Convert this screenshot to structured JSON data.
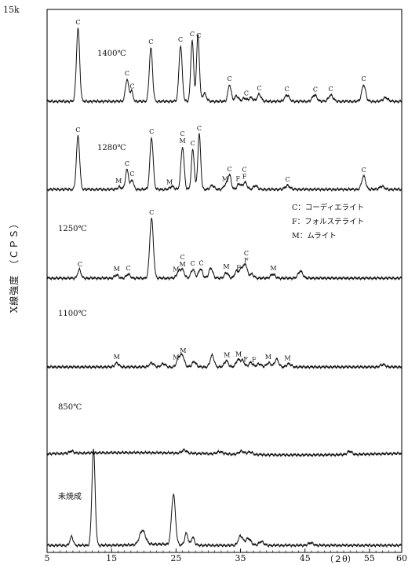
{
  "chart_data": {
    "type": "line",
    "title": "",
    "xlabel": "（２θ）",
    "ylabel": "X線強度　（ＣＰＳ）",
    "ytop_label": "15k",
    "xlim": [
      5,
      60
    ],
    "xticks": [
      {
        "value": 5,
        "label": "5"
      },
      {
        "value": 15,
        "label": "15"
      },
      {
        "value": 25,
        "label": "25"
      },
      {
        "value": 35,
        "label": "35"
      },
      {
        "value": 45,
        "label": "45"
      },
      {
        "value": 55,
        "label": "55"
      },
      {
        "value": 60,
        "label": "60"
      }
    ],
    "legend": {
      "position": "right, beside 1250℃ curve",
      "items": [
        {
          "key": "C",
          "text": "C：コーディエライト"
        },
        {
          "key": "F",
          "text": "F：フォルステライト"
        },
        {
          "key": "M",
          "text": "M：ムライト"
        }
      ]
    },
    "series": [
      {
        "name": "1400℃",
        "peaks": [
          {
            "x": 9.8,
            "h": 93,
            "w": 0.25
          },
          {
            "x": 17.4,
            "h": 28,
            "w": 0.25
          },
          {
            "x": 18.1,
            "h": 13,
            "w": 0.22
          },
          {
            "x": 21.1,
            "h": 68,
            "w": 0.25
          },
          {
            "x": 25.7,
            "h": 71,
            "w": 0.25
          },
          {
            "x": 27.5,
            "h": 78,
            "w": 0.22
          },
          {
            "x": 28.4,
            "h": 84,
            "w": 0.22
          },
          {
            "x": 29.4,
            "h": 10,
            "w": 0.3
          },
          {
            "x": 33.3,
            "h": 21,
            "w": 0.25
          },
          {
            "x": 34.4,
            "h": 7,
            "w": 0.3
          },
          {
            "x": 35.6,
            "h": 4,
            "w": 0.3
          },
          {
            "x": 36.6,
            "h": 5,
            "w": 0.3
          },
          {
            "x": 37.9,
            "h": 9,
            "w": 0.3
          },
          {
            "x": 42.2,
            "h": 8,
            "w": 0.35
          },
          {
            "x": 46.5,
            "h": 8,
            "w": 0.35
          },
          {
            "x": 49.0,
            "h": 8,
            "w": 0.35
          },
          {
            "x": 54.1,
            "h": 21,
            "w": 0.3
          },
          {
            "x": 57.5,
            "h": 5,
            "w": 0.35
          }
        ],
        "labels": [
          {
            "x": 9.8,
            "text": "C"
          },
          {
            "x": 17.4,
            "text": "C"
          },
          {
            "x": 18.2,
            "text": "C"
          },
          {
            "x": 21.1,
            "text": "C"
          },
          {
            "x": 25.7,
            "text": "C"
          },
          {
            "x": 27.5,
            "text": "C"
          },
          {
            "x": 28.5,
            "text": "C"
          },
          {
            "x": 33.3,
            "text": "C"
          },
          {
            "x": 35.9,
            "text": "C"
          },
          {
            "x": 37.9,
            "text": "C"
          },
          {
            "x": 42.2,
            "text": "C"
          },
          {
            "x": 46.6,
            "text": "C"
          },
          {
            "x": 49.0,
            "text": "C"
          },
          {
            "x": 54.1,
            "text": "C"
          }
        ]
      },
      {
        "name": "1280℃",
        "peaks": [
          {
            "x": 9.8,
            "h": 68,
            "w": 0.25
          },
          {
            "x": 16.2,
            "h": 3,
            "w": 0.3
          },
          {
            "x": 17.4,
            "h": 25,
            "w": 0.25
          },
          {
            "x": 18.2,
            "h": 12,
            "w": 0.22
          },
          {
            "x": 21.2,
            "h": 66,
            "w": 0.25
          },
          {
            "x": 24.4,
            "h": 4,
            "w": 0.3
          },
          {
            "x": 26.0,
            "h": 54,
            "w": 0.25
          },
          {
            "x": 27.6,
            "h": 51,
            "w": 0.22
          },
          {
            "x": 28.6,
            "h": 70,
            "w": 0.22
          },
          {
            "x": 30.6,
            "h": 5,
            "w": 0.3
          },
          {
            "x": 32.7,
            "h": 6,
            "w": 0.3
          },
          {
            "x": 33.3,
            "h": 18,
            "w": 0.25
          },
          {
            "x": 34.8,
            "h": 7,
            "w": 0.3
          },
          {
            "x": 35.7,
            "h": 9,
            "w": 0.3
          },
          {
            "x": 37.3,
            "h": 5,
            "w": 0.3
          },
          {
            "x": 42.3,
            "h": 5,
            "w": 0.35
          },
          {
            "x": 54.1,
            "h": 17,
            "w": 0.3
          },
          {
            "x": 56.9,
            "h": 4,
            "w": 0.35
          }
        ],
        "labels": [
          {
            "x": 9.8,
            "text": "C"
          },
          {
            "x": 16.1,
            "text": "M"
          },
          {
            "x": 17.4,
            "text": "C"
          },
          {
            "x": 18.2,
            "text": "C"
          },
          {
            "x": 21.2,
            "text": "C"
          },
          {
            "x": 24.0,
            "text": "M"
          },
          {
            "x": 26.0,
            "text": "M"
          },
          {
            "x": 26.0,
            "text": "C"
          },
          {
            "x": 27.6,
            "text": "C"
          },
          {
            "x": 28.6,
            "text": "C"
          },
          {
            "x": 32.6,
            "text": "M"
          },
          {
            "x": 33.3,
            "text": "C"
          },
          {
            "x": 34.6,
            "text": "F"
          },
          {
            "x": 35.6,
            "text": "F"
          },
          {
            "x": 35.6,
            "text": "C"
          },
          {
            "x": 42.3,
            "text": "C"
          },
          {
            "x": 54.1,
            "text": "C"
          }
        ]
      },
      {
        "name": "1250℃",
        "peaks": [
          {
            "x": 10.0,
            "h": 11,
            "w": 0.25
          },
          {
            "x": 15.8,
            "h": 4,
            "w": 0.3
          },
          {
            "x": 17.6,
            "h": 5,
            "w": 0.3
          },
          {
            "x": 21.2,
            "h": 76,
            "w": 0.28
          },
          {
            "x": 25.4,
            "h": 8,
            "w": 0.3
          },
          {
            "x": 26.0,
            "h": 10,
            "w": 0.3
          },
          {
            "x": 27.6,
            "h": 11,
            "w": 0.3
          },
          {
            "x": 28.8,
            "h": 12,
            "w": 0.3
          },
          {
            "x": 30.4,
            "h": 13,
            "w": 0.3
          },
          {
            "x": 32.8,
            "h": 7,
            "w": 0.3
          },
          {
            "x": 34.4,
            "h": 9,
            "w": 0.3
          },
          {
            "x": 35.2,
            "h": 13,
            "w": 0.3
          },
          {
            "x": 35.8,
            "h": 16,
            "w": 0.25
          },
          {
            "x": 36.7,
            "h": 5,
            "w": 0.35
          },
          {
            "x": 40.0,
            "h": 5,
            "w": 0.35
          },
          {
            "x": 44.3,
            "h": 9,
            "w": 0.35
          }
        ],
        "labels": [
          {
            "x": 10.1,
            "text": "C"
          },
          {
            "x": 15.8,
            "text": "M"
          },
          {
            "x": 17.6,
            "text": "C"
          },
          {
            "x": 21.2,
            "text": "C"
          },
          {
            "x": 25.0,
            "text": "M"
          },
          {
            "x": 26.0,
            "text": "M"
          },
          {
            "x": 26.0,
            "text": "C"
          },
          {
            "x": 27.6,
            "text": "C"
          },
          {
            "x": 28.9,
            "text": "C"
          },
          {
            "x": 32.8,
            "text": "M"
          },
          {
            "x": 34.7,
            "text": "F"
          },
          {
            "x": 35.9,
            "text": "F"
          },
          {
            "x": 35.9,
            "text": "C"
          },
          {
            "x": 40.1,
            "text": "M"
          }
        ]
      },
      {
        "name": "1100℃",
        "peaks": [
          {
            "x": 15.8,
            "h": 5,
            "w": 0.3
          },
          {
            "x": 21.2,
            "h": 5,
            "w": 0.35
          },
          {
            "x": 23.0,
            "h": 4,
            "w": 0.35
          },
          {
            "x": 25.4,
            "h": 11,
            "w": 0.3
          },
          {
            "x": 26.0,
            "h": 14,
            "w": 0.3
          },
          {
            "x": 27.8,
            "h": 7,
            "w": 0.3
          },
          {
            "x": 30.6,
            "h": 15,
            "w": 0.3
          },
          {
            "x": 32.8,
            "h": 8,
            "w": 0.3
          },
          {
            "x": 34.6,
            "h": 9,
            "w": 0.3
          },
          {
            "x": 35.3,
            "h": 8,
            "w": 0.3
          },
          {
            "x": 36.6,
            "h": 6,
            "w": 0.3
          },
          {
            "x": 37.9,
            "h": 4,
            "w": 0.35
          },
          {
            "x": 39.4,
            "h": 5,
            "w": 0.35
          },
          {
            "x": 40.6,
            "h": 10,
            "w": 0.3
          },
          {
            "x": 42.5,
            "h": 4,
            "w": 0.35
          },
          {
            "x": 57.1,
            "h": 3,
            "w": 0.4
          }
        ],
        "labels": [
          {
            "x": 15.8,
            "text": "M"
          },
          {
            "x": 25.0,
            "text": "M"
          },
          {
            "x": 26.1,
            "text": "M"
          },
          {
            "x": 32.9,
            "text": "M"
          },
          {
            "x": 34.7,
            "text": "M"
          },
          {
            "x": 35.8,
            "text": "F"
          },
          {
            "x": 37.1,
            "text": "F"
          },
          {
            "x": 39.3,
            "text": "M"
          },
          {
            "x": 42.3,
            "text": "M"
          }
        ]
      },
      {
        "name": "850℃",
        "peaks": [
          {
            "x": 8.8,
            "h": 3,
            "w": 0.3
          },
          {
            "x": 26.3,
            "h": 4,
            "w": 0.35
          },
          {
            "x": 31.8,
            "h": 3,
            "w": 0.4
          },
          {
            "x": 35.2,
            "h": 4,
            "w": 0.4
          },
          {
            "x": 36.5,
            "h": 3,
            "w": 0.4
          },
          {
            "x": 51.9,
            "h": 4,
            "w": 0.35
          }
        ],
        "labels": []
      },
      {
        "name": "未焼成",
        "peaks": [
          {
            "x": 8.8,
            "h": 11,
            "w": 0.25
          },
          {
            "x": 12.2,
            "h": 122,
            "w": 0.25
          },
          {
            "x": 19.8,
            "h": 18,
            "w": 0.45
          },
          {
            "x": 24.6,
            "h": 64,
            "w": 0.3
          },
          {
            "x": 26.6,
            "h": 15,
            "w": 0.25
          },
          {
            "x": 27.6,
            "h": 10,
            "w": 0.25
          },
          {
            "x": 35.0,
            "h": 12,
            "w": 0.35
          },
          {
            "x": 36.2,
            "h": 9,
            "w": 0.4
          },
          {
            "x": 38.2,
            "h": 5,
            "w": 0.35
          },
          {
            "x": 45.9,
            "h": 3,
            "w": 0.4
          }
        ],
        "labels": []
      }
    ]
  }
}
